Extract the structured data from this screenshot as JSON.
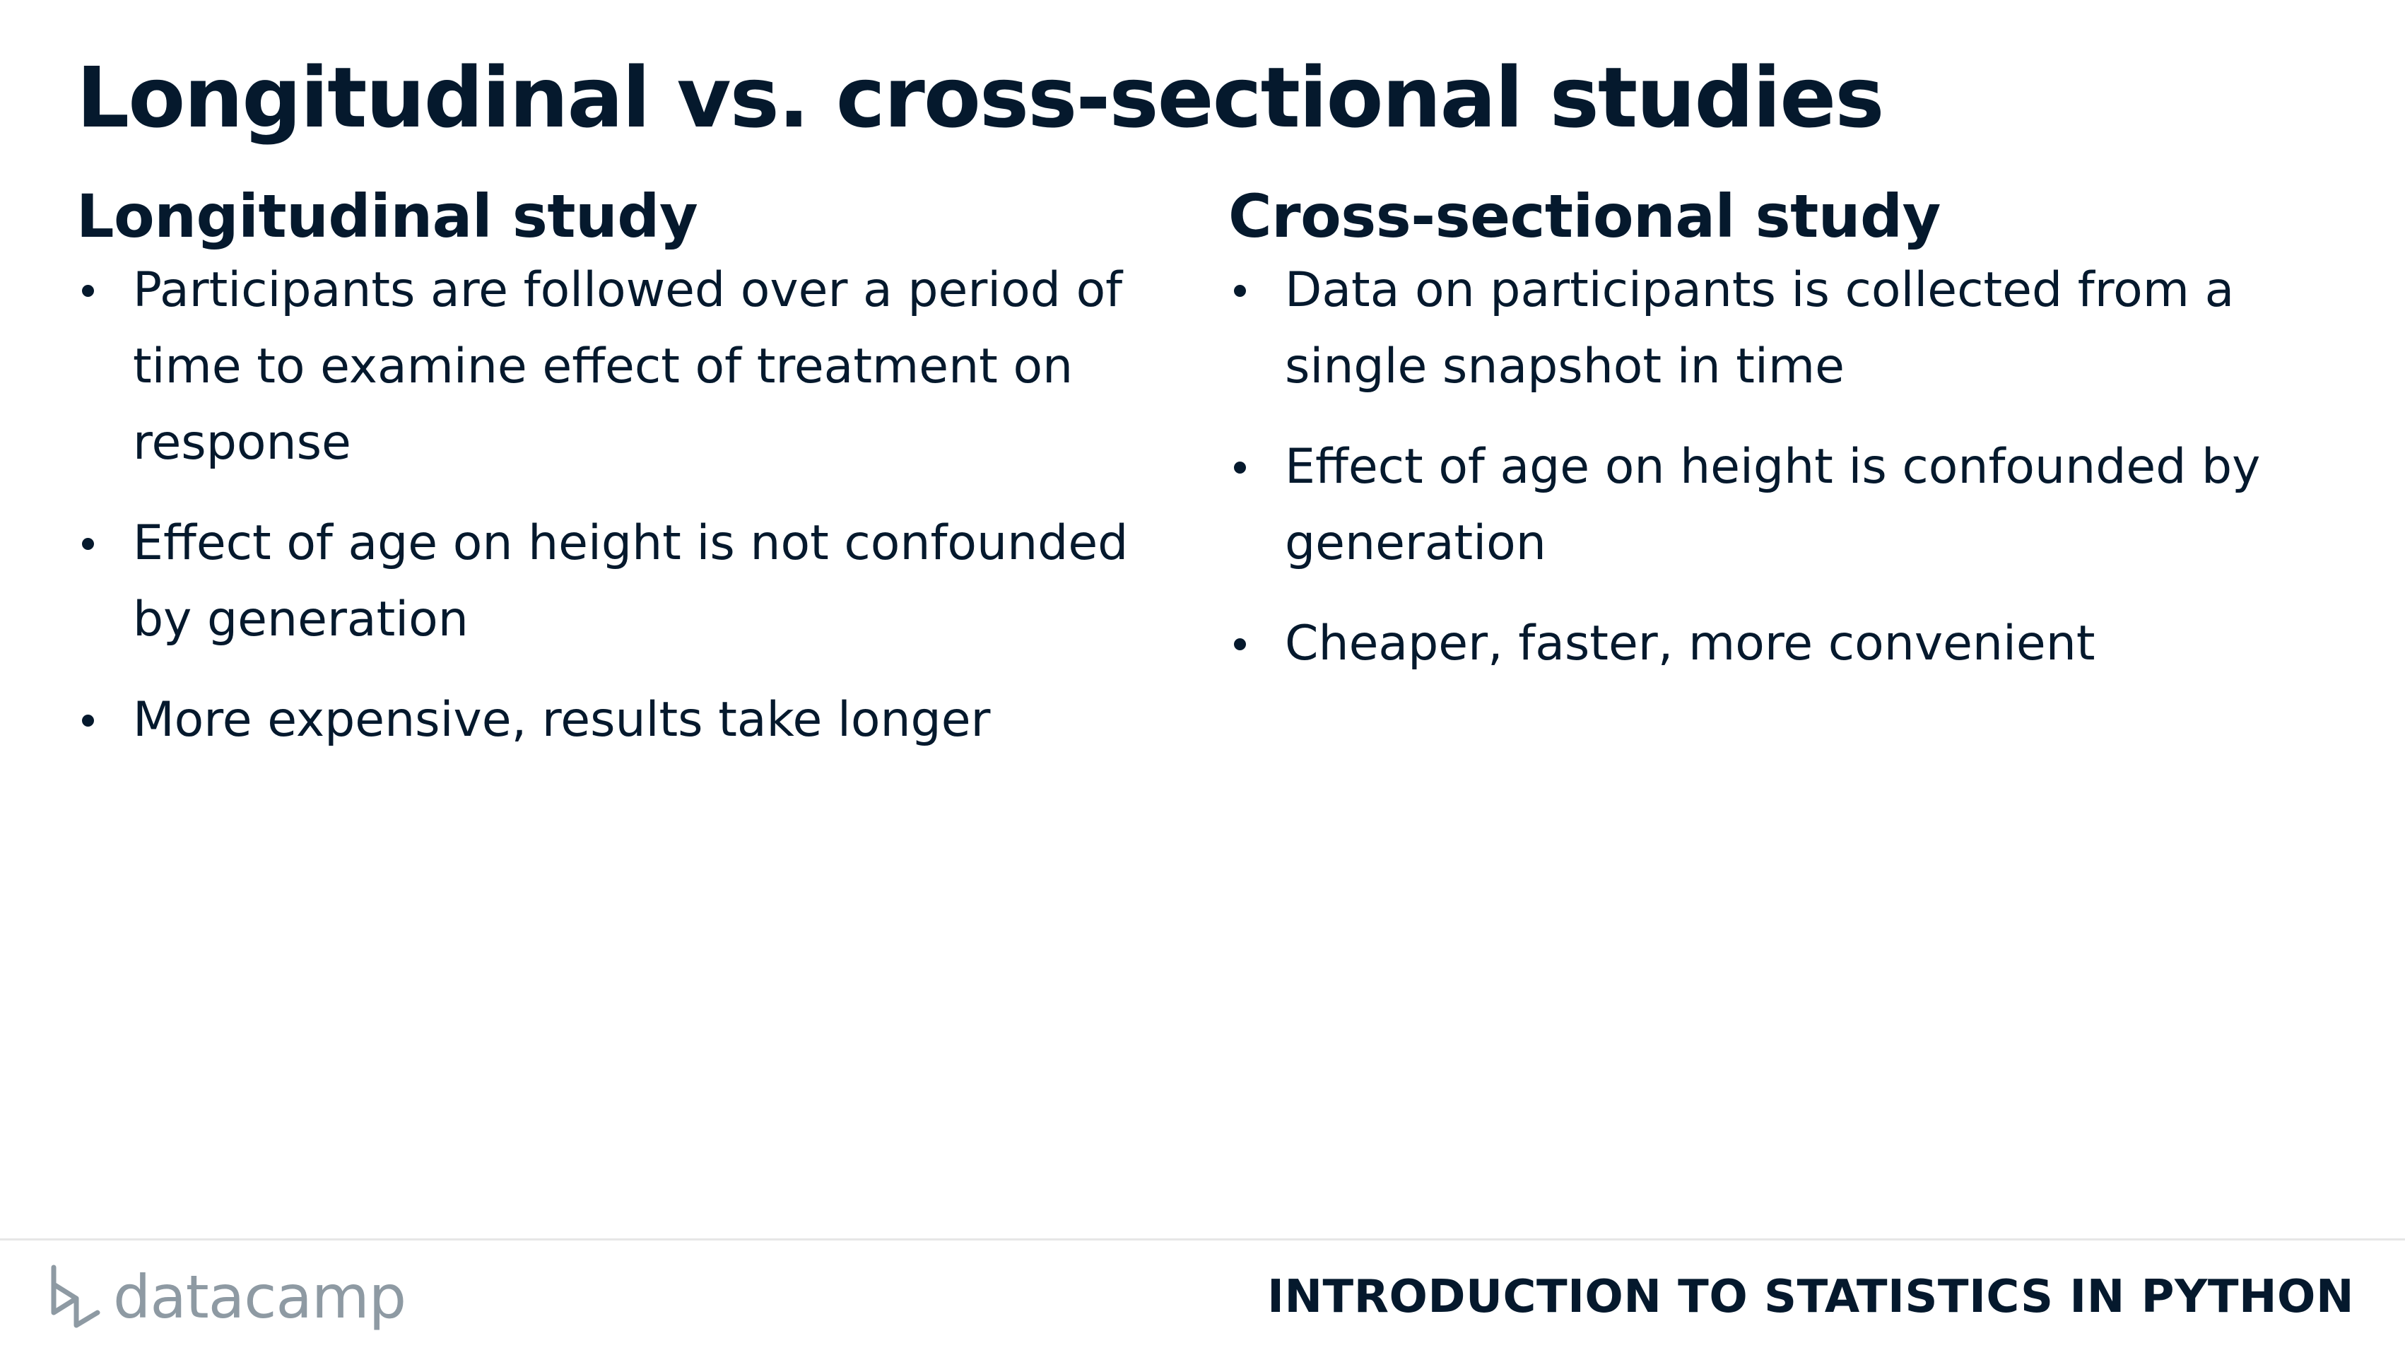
{
  "slide": {
    "title": "Longitudinal vs. cross-sectional studies"
  },
  "columns": [
    {
      "heading": "Longitudinal study",
      "bullets": [
        {
          "lines": [
            "Participants are followed over a period of",
            "time to examine effect of treatment on",
            "response"
          ]
        },
        {
          "lines": [
            "Effect of age on height is not confounded",
            "by generation"
          ]
        },
        {
          "lines": [
            "More expensive, results take longer"
          ]
        }
      ]
    },
    {
      "heading": "Cross-sectional study",
      "bullets": [
        {
          "lines": [
            "Data on participants is collected from a",
            "single snapshot in time"
          ]
        },
        {
          "lines": [
            "Effect of age on height is confounded by",
            "generation"
          ]
        },
        {
          "lines": [
            "Cheaper, faster, more convenient"
          ]
        }
      ]
    }
  ],
  "footer": {
    "logo_text": "datacamp",
    "course_name": "INTRODUCTION TO STATISTICS IN PYTHON"
  },
  "colors": {
    "text": "#05192d",
    "logo": "#8e9aa3",
    "rule": "#e6e6e6"
  }
}
